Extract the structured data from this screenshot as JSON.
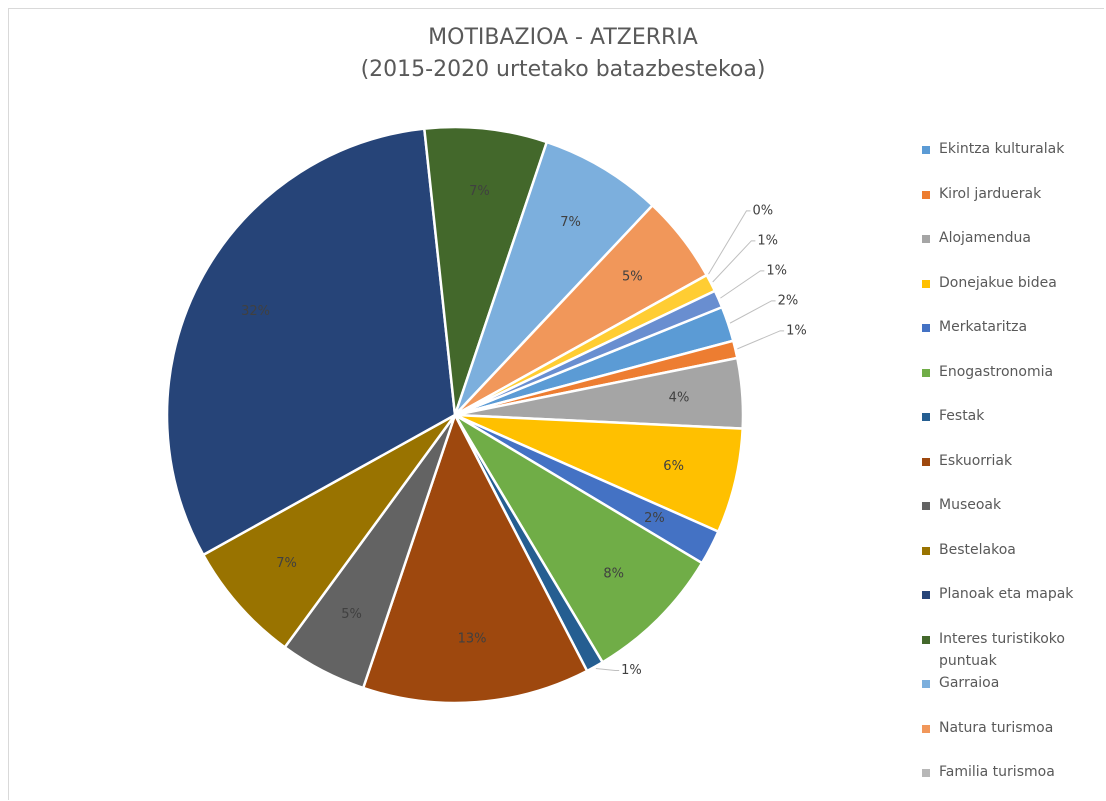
{
  "chart_data": {
    "type": "pie",
    "title": "MOTIBAZIOA - ATZERRIA",
    "subtitle": "(2015-2020 urtetako batazbestekoa)",
    "categories": [
      "Ekintza kulturalak",
      "Kirol jarduerak",
      "Alojamendua",
      "Donejakue bidea",
      "Merkataritza",
      "Enogastronomia",
      "Festak",
      "Eskuorriak",
      "Museoak",
      "Bestelakoa",
      "Planoak eta mapak",
      "Interes turistikoko puntuak",
      "Garraioa",
      "Natura turismoa",
      "Familia turismoa",
      null,
      null
    ],
    "values": [
      2,
      1,
      4,
      6,
      2,
      8,
      1,
      13,
      5,
      7,
      32,
      7,
      7,
      5,
      0,
      1,
      1
    ],
    "value_labels": [
      "2%",
      "1%",
      "4%",
      "6%",
      "2%",
      "8%",
      "1%",
      "13%",
      "5%",
      "7%",
      "32%",
      "7%",
      "7%",
      "5%",
      "0%",
      "1%",
      "1%"
    ],
    "colors": [
      "#5b9bd5",
      "#ed7d31",
      "#a5a5a5",
      "#ffc000",
      "#4472c4",
      "#70ad47",
      "#255e91",
      "#9e480e",
      "#636363",
      "#997300",
      "#264478",
      "#43682b",
      "#7cafdd",
      "#f1975a",
      "#b7b7b7",
      "#ffcd33",
      "#698ed0"
    ]
  }
}
